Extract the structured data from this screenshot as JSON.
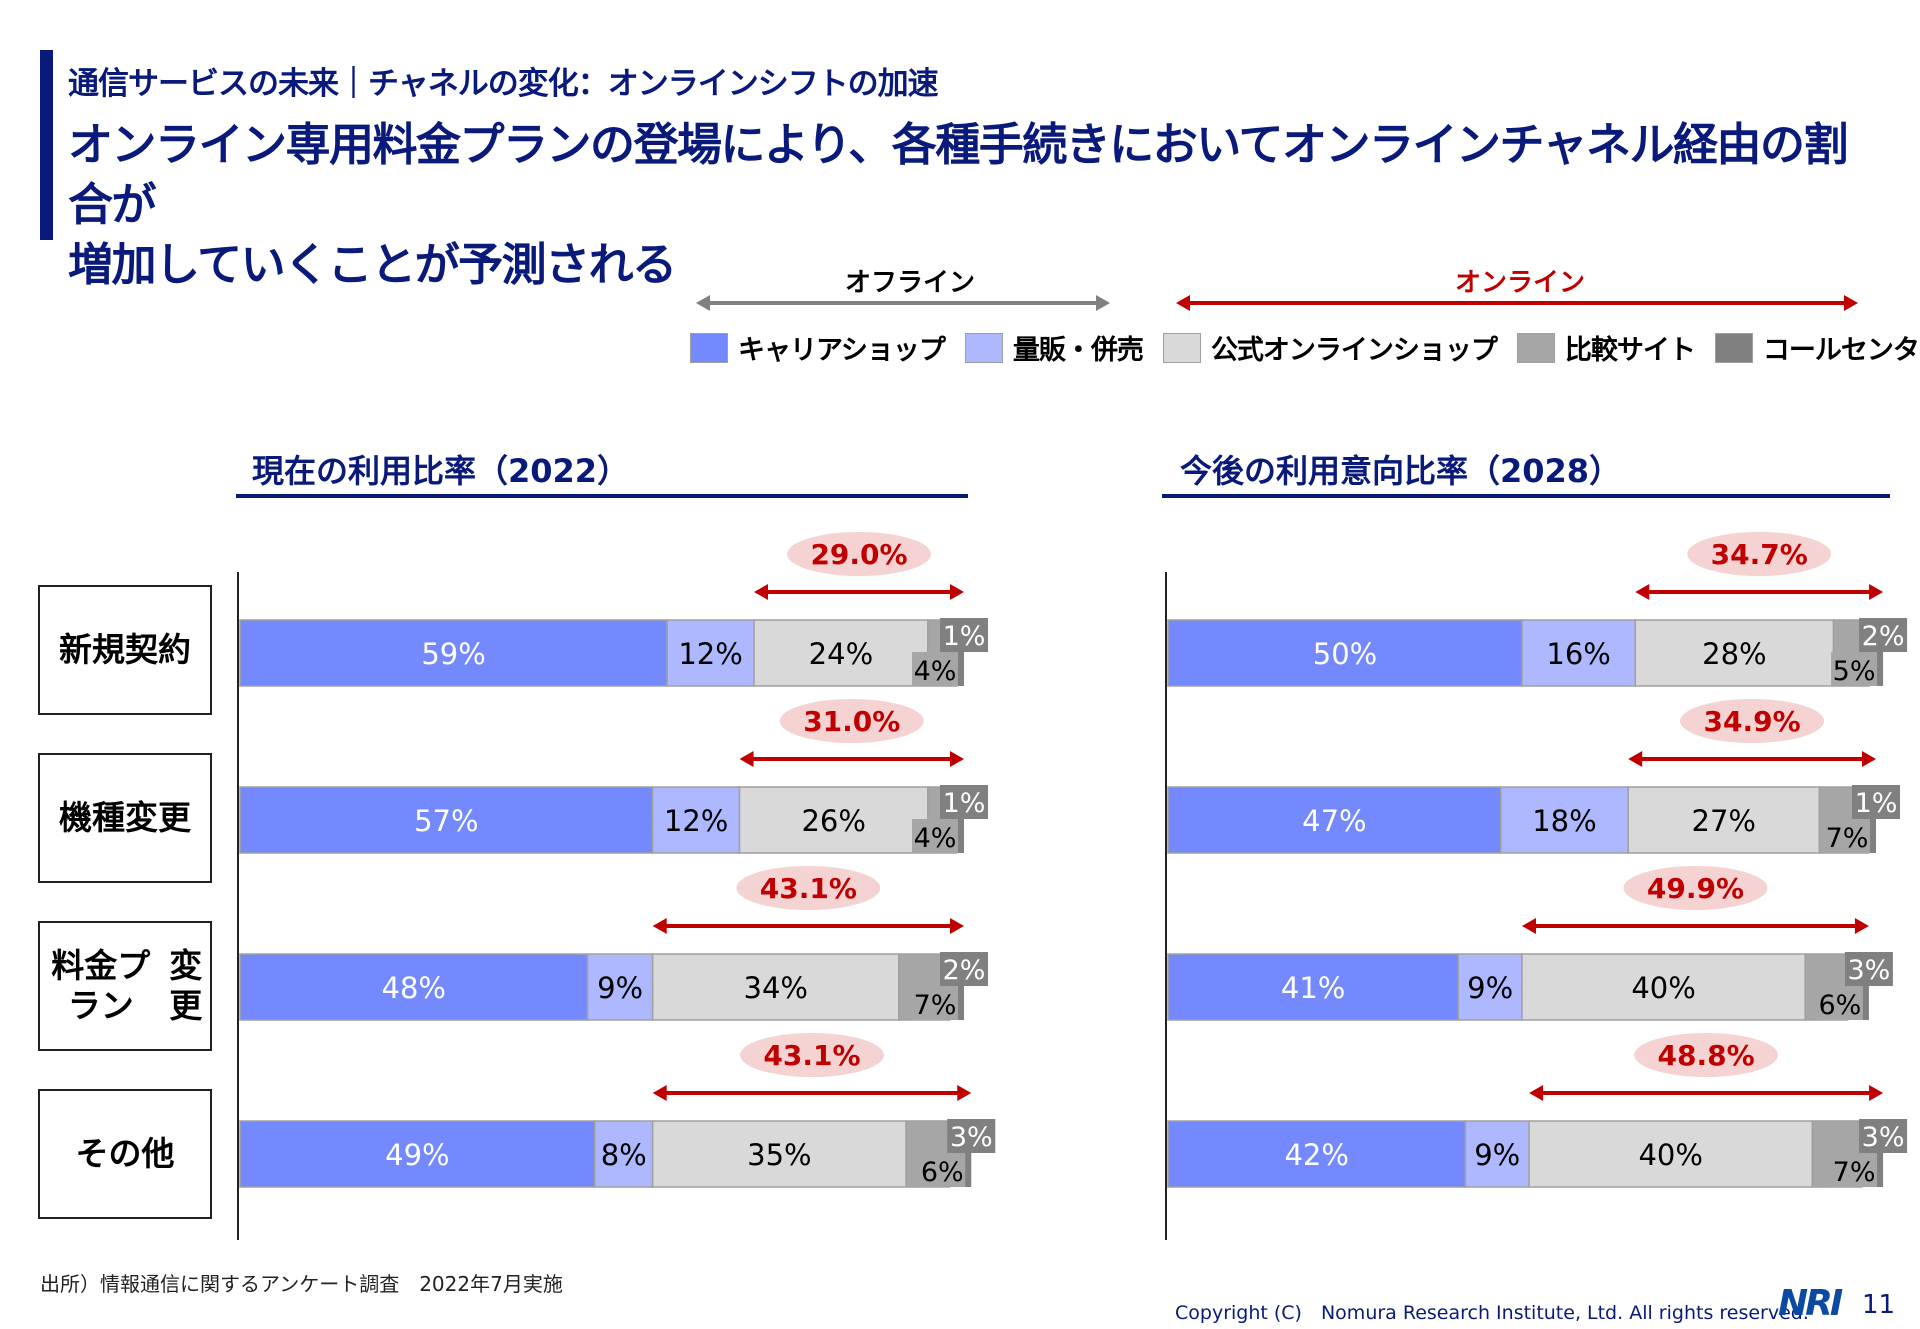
{
  "header": {
    "subtitle": "通信サービスの未来｜チャネルの変化：オンラインシフトの加速",
    "headline_line1": "オンライン専用料金プランの登場により、各種手続きにおいてオンラインチャネル経由の割合が",
    "headline_line2": "増加していくことが予測される"
  },
  "ranges": {
    "offline": "オフライン",
    "online": "オンライン"
  },
  "legend": [
    {
      "label": "キャリアショップ",
      "color": "#7489fd"
    },
    {
      "label": "量販・併売",
      "color": "#aeb8fe"
    },
    {
      "label": "公式オンラインショップ",
      "color": "#d9d9d9"
    },
    {
      "label": "比較サイト",
      "color": "#a6a6a6"
    },
    {
      "label": "コールセンター",
      "color": "#808080"
    }
  ],
  "colors": {
    "navy": "#0a1a7a",
    "online_red": "#c00000",
    "offline_gray": "#808080",
    "ellipse_fill": "#f5d3d3"
  },
  "categories": [
    "新規契約",
    "機種変更",
    "料金プラン変更",
    "その他"
  ],
  "category_lines": [
    [
      "新規契約"
    ],
    [
      "機種変更"
    ],
    [
      "料金プラン",
      "変更"
    ],
    [
      "その他"
    ]
  ],
  "chart_data": [
    {
      "type": "bar",
      "orientation": "horizontal-stacked-100",
      "title": "現在の利用比率（2022）",
      "categories": [
        "新規契約",
        "機種変更",
        "料金プラン変更",
        "その他"
      ],
      "series": [
        {
          "name": "キャリアショップ",
          "values": [
            59,
            57,
            48,
            49
          ]
        },
        {
          "name": "量販・併売",
          "values": [
            12,
            12,
            9,
            8
          ]
        },
        {
          "name": "公式オンラインショップ",
          "values": [
            24,
            26,
            34,
            35
          ]
        },
        {
          "name": "比較サイト",
          "values": [
            4,
            4,
            7,
            6
          ]
        },
        {
          "name": "コールセンター",
          "values": [
            1,
            1,
            2,
            3
          ]
        }
      ],
      "online_share": [
        "29.0%",
        "31.0%",
        "43.1%",
        "43.1%"
      ],
      "xlim": [
        0,
        100
      ]
    },
    {
      "type": "bar",
      "orientation": "horizontal-stacked-100",
      "title": "今後の利用意向比率（2028）",
      "categories": [
        "新規契約",
        "機種変更",
        "料金プラン変更",
        "その他"
      ],
      "series": [
        {
          "name": "キャリアショップ",
          "values": [
            50,
            47,
            41,
            42
          ]
        },
        {
          "name": "量販・併売",
          "values": [
            16,
            18,
            9,
            9
          ]
        },
        {
          "name": "公式オンラインショップ",
          "values": [
            28,
            27,
            40,
            40
          ]
        },
        {
          "name": "比較サイト",
          "values": [
            5,
            7,
            6,
            7
          ]
        },
        {
          "name": "コールセンター",
          "values": [
            2,
            1,
            3,
            3
          ]
        }
      ],
      "online_share": [
        "34.7%",
        "34.9%",
        "49.9%",
        "48.8%"
      ],
      "xlim": [
        0,
        100
      ]
    }
  ],
  "footer": {
    "source": "出所）情報通信に関するアンケート調査　2022年7月実施",
    "copyright": "Copyright (C)　Nomura Research Institute, Ltd. All rights reserved.",
    "logo": "NRI",
    "page_number": "11"
  }
}
